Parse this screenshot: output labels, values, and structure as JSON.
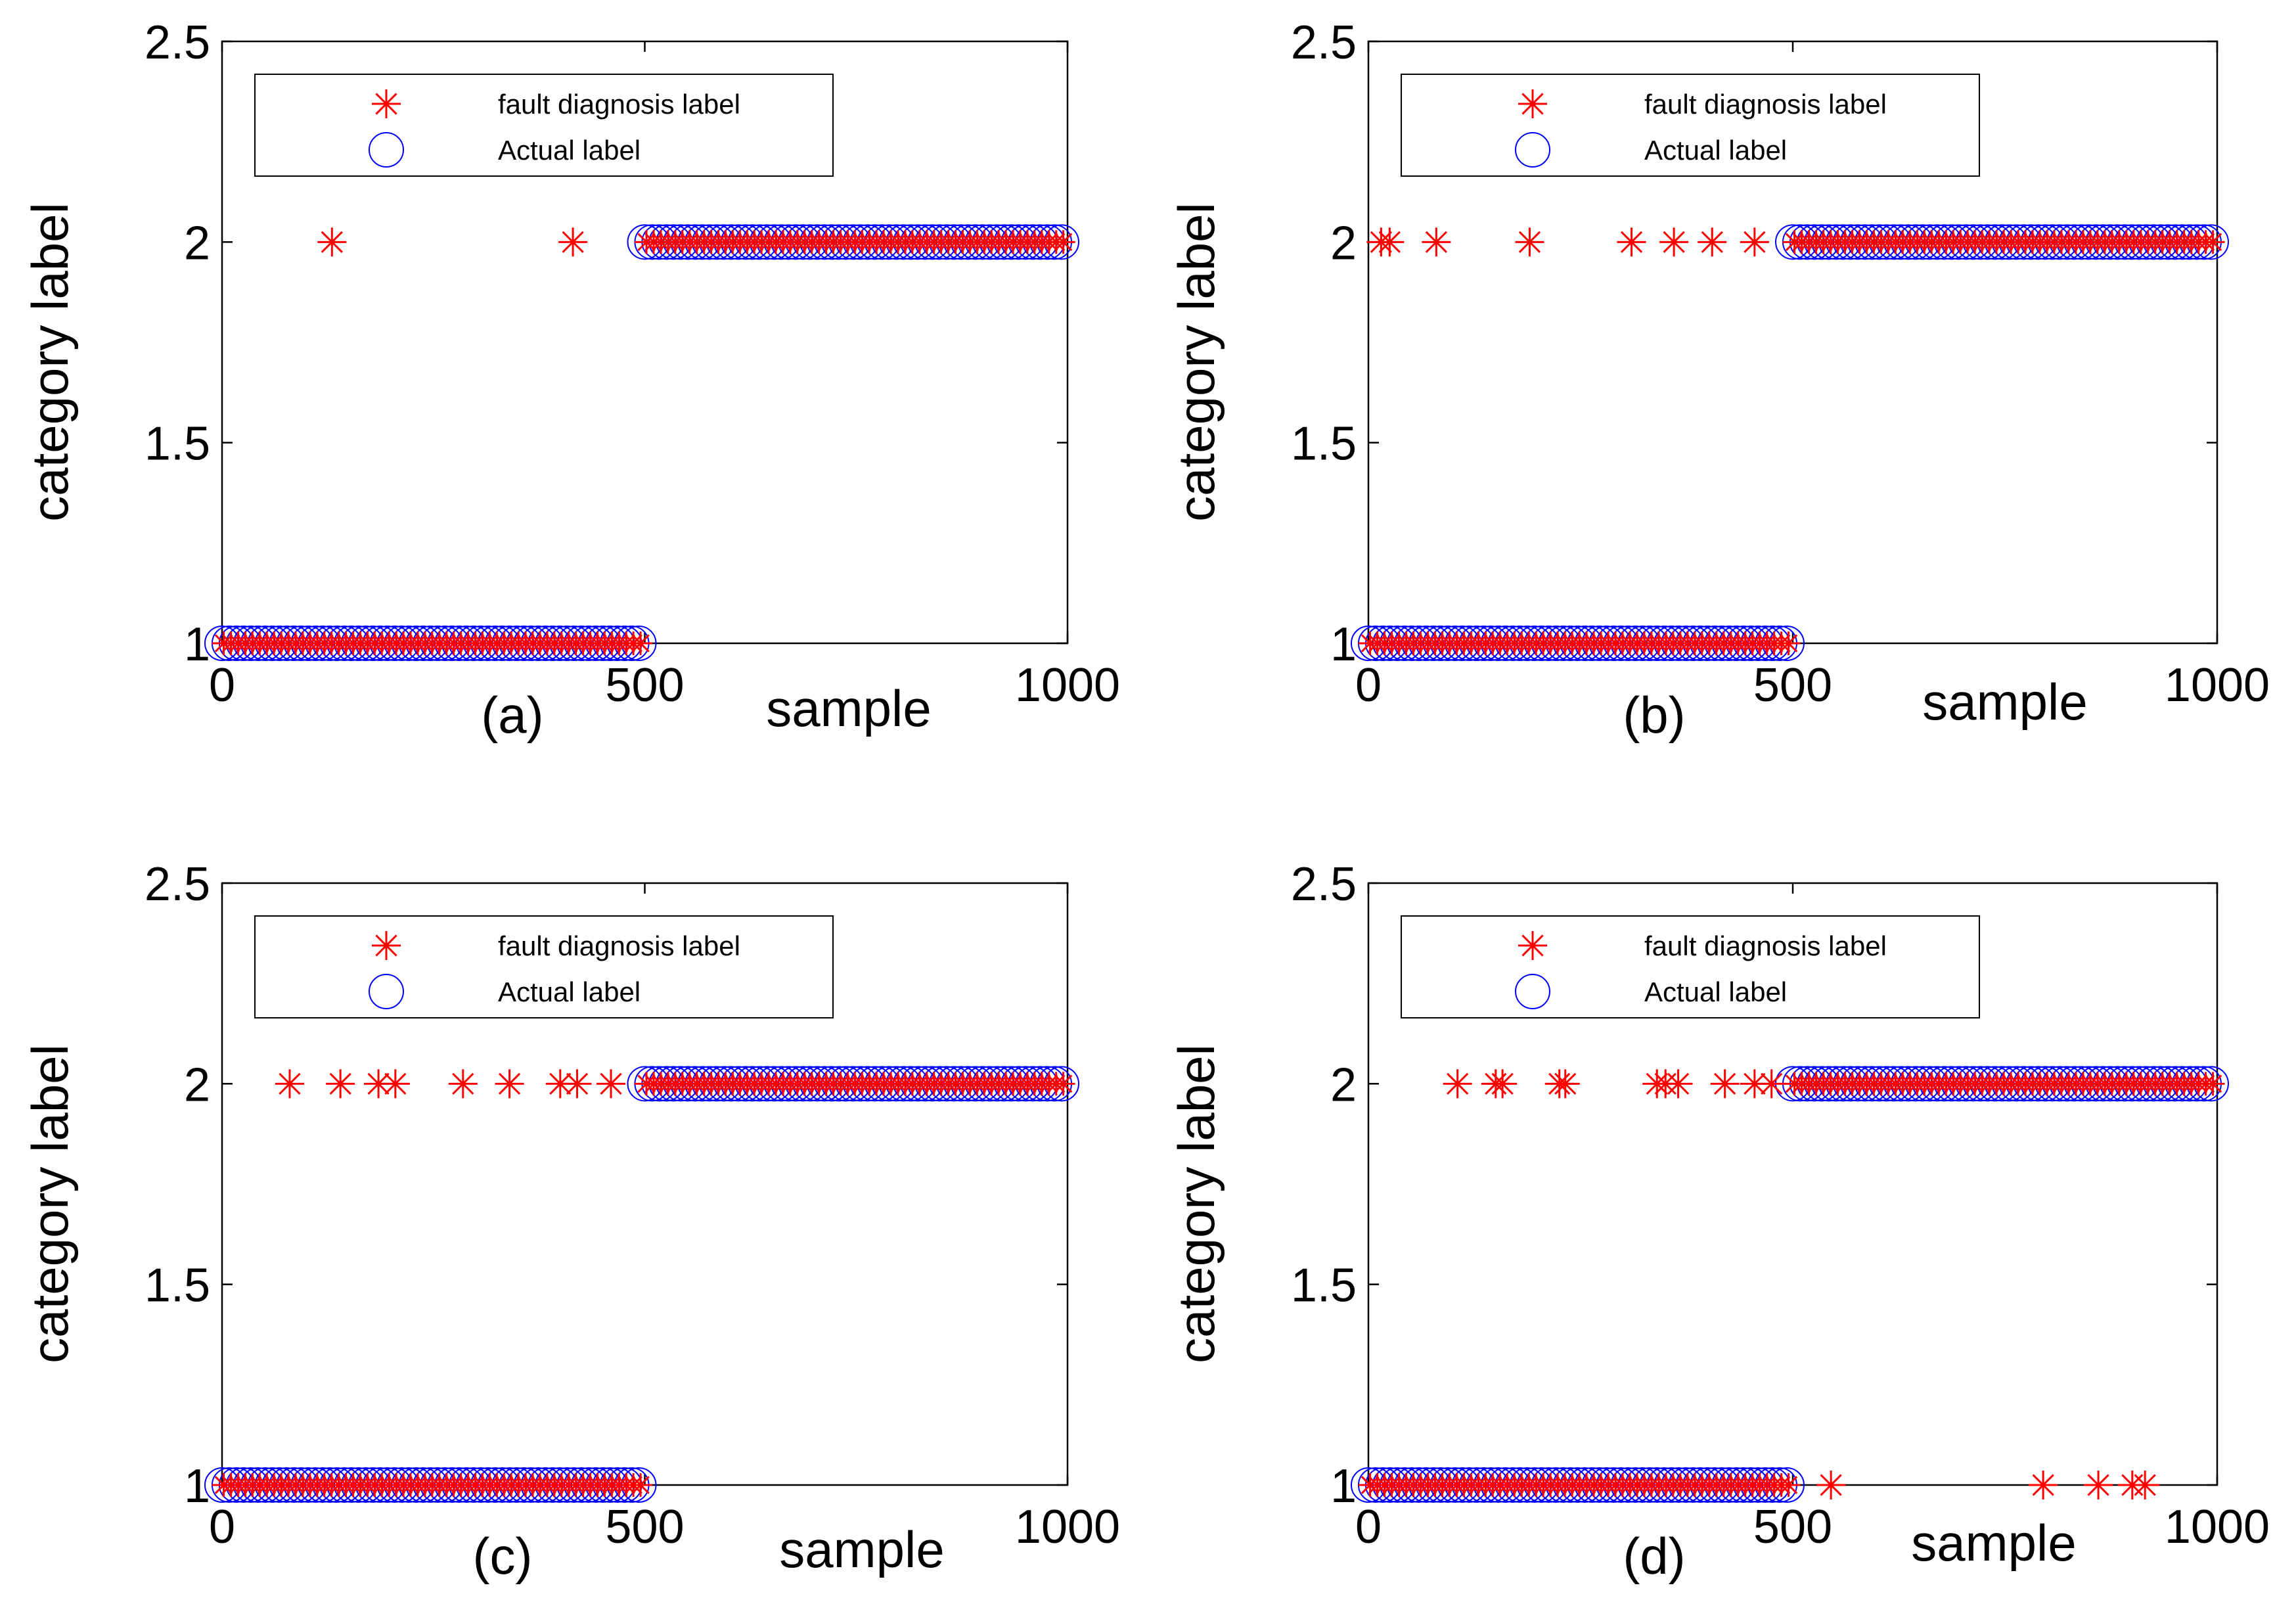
{
  "chart_data": [
    {
      "type": "scatter",
      "panel_label": "(a)",
      "xlabel": "sample",
      "ylabel": "category label",
      "xlim": [
        0,
        1000
      ],
      "ylim": [
        1,
        2.5
      ],
      "xticks": [
        "0",
        "500",
        "1000"
      ],
      "yticks": [
        "1",
        "1.5",
        "2",
        "2.5"
      ],
      "legend": {
        "placement": "top-left",
        "entries": [
          "fault diagnosis label",
          "Actual label"
        ]
      },
      "series": [
        {
          "name": "fault diagnosis label",
          "marker": "asterisk",
          "color": "#ff0000",
          "segments": [
            {
              "x_from": 0,
              "x_to": 500,
              "value": 1
            },
            {
              "x_from": 500,
              "x_to": 1000,
              "value": 2
            }
          ],
          "outliers": [
            {
              "x": 130,
              "y": 2
            },
            {
              "x": 415,
              "y": 2
            }
          ]
        },
        {
          "name": "Actual label",
          "marker": "circle",
          "color": "#0000ff",
          "segments": [
            {
              "x_from": 0,
              "x_to": 500,
              "value": 1
            },
            {
              "x_from": 500,
              "x_to": 1000,
              "value": 2
            }
          ]
        }
      ]
    },
    {
      "type": "scatter",
      "panel_label": "(b)",
      "xlabel": "sample",
      "ylabel": "category label",
      "xlim": [
        0,
        1000
      ],
      "ylim": [
        1,
        2.5
      ],
      "xticks": [
        "0",
        "500",
        "1000"
      ],
      "yticks": [
        "1",
        "1.5",
        "2",
        "2.5"
      ],
      "legend": {
        "placement": "top-left",
        "entries": [
          "fault diagnosis label",
          "Actual label"
        ]
      },
      "series": [
        {
          "name": "fault diagnosis label",
          "marker": "asterisk",
          "color": "#ff0000",
          "segments": [
            {
              "x_from": 0,
              "x_to": 500,
              "value": 1
            },
            {
              "x_from": 500,
              "x_to": 1000,
              "value": 2
            }
          ],
          "outliers": [
            {
              "x": 15,
              "y": 2
            },
            {
              "x": 25,
              "y": 2
            },
            {
              "x": 80,
              "y": 2
            },
            {
              "x": 190,
              "y": 2
            },
            {
              "x": 310,
              "y": 2
            },
            {
              "x": 360,
              "y": 2
            },
            {
              "x": 405,
              "y": 2
            },
            {
              "x": 455,
              "y": 2
            }
          ]
        },
        {
          "name": "Actual label",
          "marker": "circle",
          "color": "#0000ff",
          "segments": [
            {
              "x_from": 0,
              "x_to": 500,
              "value": 1
            },
            {
              "x_from": 500,
              "x_to": 1000,
              "value": 2
            }
          ]
        }
      ]
    },
    {
      "type": "scatter",
      "panel_label": "(c)",
      "xlabel": "sample",
      "ylabel": "category label",
      "xlim": [
        0,
        1000
      ],
      "ylim": [
        1,
        2.5
      ],
      "xticks": [
        "0",
        "500",
        "1000"
      ],
      "yticks": [
        "1",
        "1.5",
        "2",
        "2.5"
      ],
      "legend": {
        "placement": "top-left",
        "entries": [
          "fault diagnosis label",
          "Actual label"
        ]
      },
      "series": [
        {
          "name": "fault diagnosis label",
          "marker": "asterisk",
          "color": "#ff0000",
          "segments": [
            {
              "x_from": 0,
              "x_to": 500,
              "value": 1
            },
            {
              "x_from": 500,
              "x_to": 1000,
              "value": 2
            }
          ],
          "outliers": [
            {
              "x": 80,
              "y": 2
            },
            {
              "x": 140,
              "y": 2
            },
            {
              "x": 185,
              "y": 2
            },
            {
              "x": 205,
              "y": 2
            },
            {
              "x": 285,
              "y": 2
            },
            {
              "x": 340,
              "y": 2
            },
            {
              "x": 400,
              "y": 2
            },
            {
              "x": 420,
              "y": 2
            },
            {
              "x": 460,
              "y": 2
            }
          ]
        },
        {
          "name": "Actual label",
          "marker": "circle",
          "color": "#0000ff",
          "segments": [
            {
              "x_from": 0,
              "x_to": 500,
              "value": 1
            },
            {
              "x_from": 500,
              "x_to": 1000,
              "value": 2
            }
          ]
        }
      ]
    },
    {
      "type": "scatter",
      "panel_label": "(d)",
      "xlabel": "sample",
      "ylabel": "category label",
      "xlim": [
        0,
        1000
      ],
      "ylim": [
        1,
        2.5
      ],
      "xticks": [
        "0",
        "500",
        "1000"
      ],
      "yticks": [
        "1",
        "1.5",
        "2",
        "2.5"
      ],
      "legend": {
        "placement": "top-left",
        "entries": [
          "fault diagnosis label",
          "Actual label"
        ]
      },
      "series": [
        {
          "name": "fault diagnosis label",
          "marker": "asterisk",
          "color": "#ff0000",
          "segments": [
            {
              "x_from": 0,
              "x_to": 500,
              "value": 1
            },
            {
              "x_from": 500,
              "x_to": 1000,
              "value": 2
            }
          ],
          "outliers": [
            {
              "x": 105,
              "y": 2
            },
            {
              "x": 150,
              "y": 2
            },
            {
              "x": 158,
              "y": 2
            },
            {
              "x": 225,
              "y": 2
            },
            {
              "x": 232,
              "y": 2
            },
            {
              "x": 340,
              "y": 2
            },
            {
              "x": 350,
              "y": 2
            },
            {
              "x": 365,
              "y": 2
            },
            {
              "x": 420,
              "y": 2
            },
            {
              "x": 455,
              "y": 2
            },
            {
              "x": 475,
              "y": 2
            },
            {
              "x": 545,
              "y": 1
            },
            {
              "x": 795,
              "y": 1
            },
            {
              "x": 860,
              "y": 1
            },
            {
              "x": 900,
              "y": 1
            },
            {
              "x": 915,
              "y": 1
            }
          ]
        },
        {
          "name": "Actual label",
          "marker": "circle",
          "color": "#0000ff",
          "segments": [
            {
              "x_from": 0,
              "x_to": 500,
              "value": 1
            },
            {
              "x_from": 500,
              "x_to": 1000,
              "value": 2
            }
          ]
        }
      ]
    }
  ]
}
